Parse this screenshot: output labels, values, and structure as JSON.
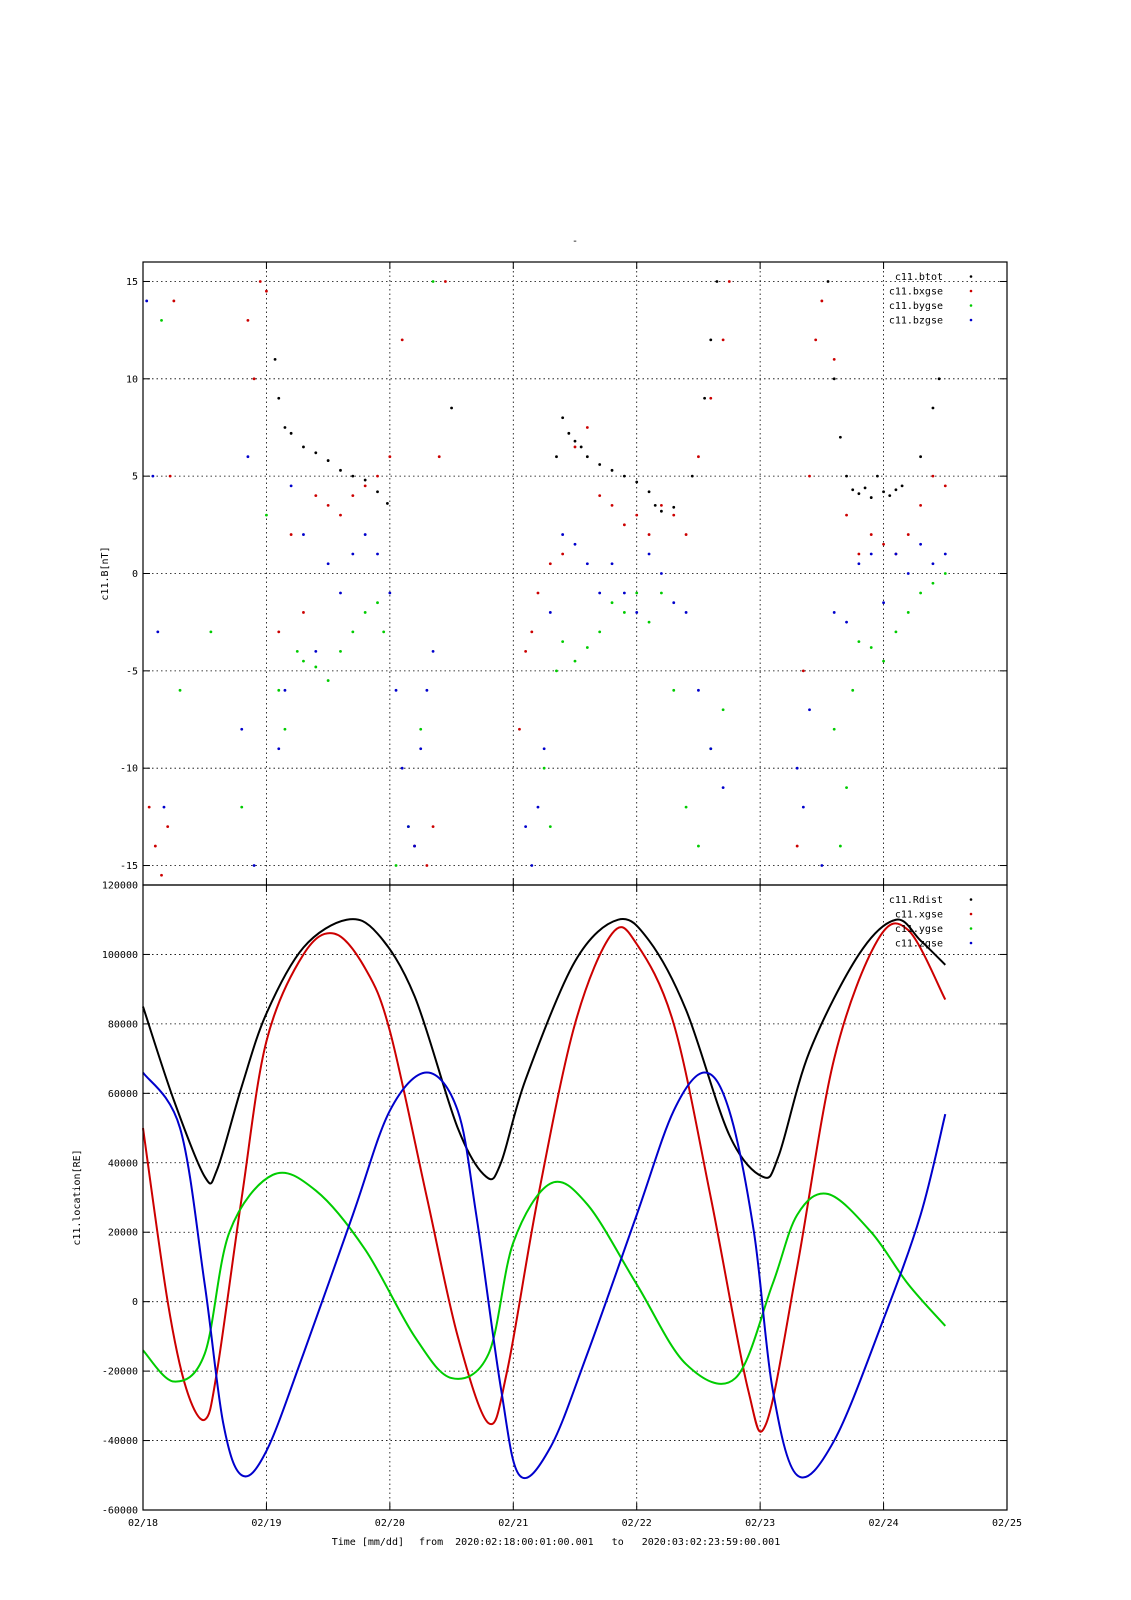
{
  "figure": {
    "top_mark": "-",
    "xlabel_time": "Time [mm/dd]",
    "xlabel_from_word": "from",
    "xlabel_from": "2020:02:18:00:01:00.001",
    "xlabel_to_word": "to",
    "xlabel_to": "2020:03:02:23:59:00.001",
    "x_tick_labels": [
      "02/18",
      "02/19",
      "02/20",
      "02/21",
      "02/22",
      "02/23",
      "02/24",
      "02/25"
    ]
  },
  "chart_data": [
    {
      "type": "scatter",
      "title": "",
      "xlabel": "",
      "ylabel": "c11.B[nT]",
      "x_unit": "days since 02/18 00:00",
      "xlim": [
        0,
        7
      ],
      "ylim": [
        -16,
        16
      ],
      "y_ticks": [
        15,
        10,
        5,
        0,
        -5,
        -10,
        -15
      ],
      "y_tick_labels": [
        "15",
        "10",
        "5",
        "0",
        "-5",
        "-10",
        "-15"
      ],
      "grid": true,
      "legend_placement": "top-right",
      "series": [
        {
          "name": "c11.btot",
          "color": "#000000",
          "x": [
            1.07,
            1.1,
            1.15,
            1.2,
            1.3,
            1.4,
            1.5,
            1.6,
            1.7,
            1.8,
            1.9,
            1.98,
            2.5,
            3.35,
            3.4,
            3.45,
            3.5,
            3.55,
            3.6,
            3.7,
            3.8,
            3.9,
            4.0,
            4.1,
            4.15,
            4.2,
            4.3,
            4.45,
            4.55,
            4.6,
            4.65,
            5.55,
            5.6,
            5.65,
            5.7,
            5.75,
            5.8,
            5.85,
            5.9,
            5.95,
            6.0,
            6.05,
            6.1,
            6.15,
            6.3,
            6.4,
            6.45
          ],
          "y": [
            11.0,
            9.0,
            7.5,
            7.2,
            6.5,
            6.2,
            5.8,
            5.3,
            5.0,
            4.8,
            4.2,
            3.6,
            8.5,
            6.0,
            8.0,
            7.2,
            6.8,
            6.5,
            6.0,
            5.6,
            5.3,
            5.0,
            4.7,
            4.2,
            3.5,
            3.2,
            3.4,
            5.0,
            9.0,
            12.0,
            15.0,
            15.0,
            10.0,
            7.0,
            5.0,
            4.3,
            4.1,
            4.4,
            3.9,
            5.0,
            4.2,
            4.0,
            4.3,
            4.5,
            6.0,
            8.5,
            10.0
          ]
        },
        {
          "name": "c11.bxgse",
          "color": "#cc0000",
          "x": [
            0.05,
            0.1,
            0.15,
            0.2,
            0.22,
            0.25,
            0.85,
            0.9,
            0.95,
            1.0,
            1.1,
            1.2,
            1.3,
            1.4,
            1.5,
            1.6,
            1.7,
            1.8,
            1.9,
            2.0,
            2.1,
            2.2,
            2.3,
            2.35,
            2.4,
            2.45,
            3.05,
            3.1,
            3.15,
            3.2,
            3.3,
            3.4,
            3.5,
            3.6,
            3.7,
            3.8,
            3.9,
            4.0,
            4.1,
            4.2,
            4.3,
            4.4,
            4.5,
            4.6,
            4.7,
            4.75,
            5.3,
            5.35,
            5.4,
            5.45,
            5.5,
            5.6,
            5.7,
            5.8,
            5.9,
            6.0,
            6.1,
            6.2,
            6.3,
            6.4,
            6.5
          ],
          "y": [
            -12.0,
            -14.0,
            -15.5,
            -13.0,
            5.0,
            14.0,
            13.0,
            10.0,
            15.0,
            14.5,
            -3.0,
            2.0,
            -2.0,
            4.0,
            3.5,
            3.0,
            4.0,
            4.5,
            5.0,
            6.0,
            12.0,
            -14.0,
            -15.0,
            -13.0,
            6.0,
            15.0,
            -8.0,
            -4.0,
            -3.0,
            -1.0,
            0.5,
            1.0,
            6.5,
            7.5,
            4.0,
            3.5,
            2.5,
            3.0,
            2.0,
            3.5,
            3.0,
            2.0,
            6.0,
            9.0,
            12.0,
            15.0,
            -14.0,
            -5.0,
            5.0,
            12.0,
            14.0,
            11.0,
            3.0,
            1.0,
            2.0,
            1.5,
            1.0,
            2.0,
            3.5,
            5.0,
            4.5
          ]
        },
        {
          "name": "c11.bygse",
          "color": "#00cc00",
          "x": [
            0.15,
            0.3,
            0.55,
            0.8,
            1.0,
            1.1,
            1.15,
            1.25,
            1.3,
            1.4,
            1.5,
            1.6,
            1.7,
            1.8,
            1.9,
            1.95,
            2.05,
            2.15,
            2.25,
            2.35,
            3.25,
            3.3,
            3.35,
            3.4,
            3.5,
            3.6,
            3.7,
            3.8,
            3.9,
            4.0,
            4.1,
            4.2,
            4.3,
            4.4,
            4.5,
            4.6,
            4.7,
            5.6,
            5.65,
            5.7,
            5.75,
            5.8,
            5.9,
            6.0,
            6.1,
            6.2,
            6.3,
            6.4,
            6.5
          ],
          "y": [
            13.0,
            -6.0,
            -3.0,
            -12.0,
            3.0,
            -6.0,
            -8.0,
            -4.0,
            -4.5,
            -4.8,
            -5.5,
            -4.0,
            -3.0,
            -2.0,
            -1.5,
            -3.0,
            -15.0,
            -13.0,
            -8.0,
            15.0,
            -10.0,
            -13.0,
            -5.0,
            -3.5,
            -4.5,
            -3.8,
            -3.0,
            -1.5,
            -2.0,
            -1.0,
            -2.5,
            -1.0,
            -6.0,
            -12.0,
            -14.0,
            -9.0,
            -7.0,
            -8.0,
            -14.0,
            -11.0,
            -6.0,
            -3.5,
            -3.8,
            -4.5,
            -3.0,
            -2.0,
            -1.0,
            -0.5,
            0.0
          ]
        },
        {
          "name": "c11.bzgse",
          "color": "#0000cc",
          "x": [
            0.03,
            0.08,
            0.12,
            0.17,
            0.8,
            0.85,
            0.9,
            1.1,
            1.15,
            1.2,
            1.3,
            1.4,
            1.5,
            1.6,
            1.7,
            1.8,
            1.9,
            2.0,
            2.05,
            2.1,
            2.15,
            2.2,
            2.25,
            2.3,
            2.35,
            3.1,
            3.15,
            3.2,
            3.25,
            3.3,
            3.4,
            3.5,
            3.6,
            3.7,
            3.8,
            3.9,
            4.0,
            4.1,
            4.2,
            4.3,
            4.4,
            4.5,
            4.6,
            4.7,
            5.3,
            5.35,
            5.4,
            5.5,
            5.6,
            5.7,
            5.8,
            5.9,
            6.0,
            6.1,
            6.2,
            6.3,
            6.4,
            6.5
          ],
          "y": [
            14.0,
            5.0,
            -3.0,
            -12.0,
            -8.0,
            6.0,
            -15.0,
            -9.0,
            -6.0,
            4.5,
            2.0,
            -4.0,
            0.5,
            -1.0,
            1.0,
            2.0,
            1.0,
            -1.0,
            -6.0,
            -10.0,
            -13.0,
            -14.0,
            -9.0,
            -6.0,
            -4.0,
            -13.0,
            -15.0,
            -12.0,
            -9.0,
            -2.0,
            2.0,
            1.5,
            0.5,
            -1.0,
            0.5,
            -1.0,
            -2.0,
            1.0,
            0.0,
            -1.5,
            -2.0,
            -6.0,
            -9.0,
            -11.0,
            -10.0,
            -12.0,
            -7.0,
            -15.0,
            -2.0,
            -2.5,
            0.5,
            1.0,
            -1.5,
            1.0,
            0.0,
            1.5,
            0.5,
            1.0
          ]
        }
      ]
    },
    {
      "type": "line",
      "title": "",
      "xlabel": "Time [mm/dd]",
      "ylabel": "c11.location[RE]",
      "x_unit": "days since 02/18 00:00",
      "xlim": [
        0,
        7
      ],
      "ylim": [
        -60000,
        120000
      ],
      "y_ticks": [
        120000,
        100000,
        80000,
        60000,
        40000,
        20000,
        0,
        -20000,
        -40000,
        -60000
      ],
      "y_tick_labels": [
        "120000",
        "100000",
        "80000",
        "60000",
        "40000",
        "20000",
        "0",
        "-20000",
        "-40000",
        "-60000"
      ],
      "grid": true,
      "legend_placement": "top-right",
      "series": [
        {
          "name": "c11.Rdist",
          "color": "#000000",
          "x": [
            0,
            0.25,
            0.5,
            0.6,
            0.8,
            1.0,
            1.3,
            1.65,
            1.9,
            2.2,
            2.55,
            2.78,
            2.9,
            3.1,
            3.5,
            3.85,
            4.1,
            4.4,
            4.75,
            5.02,
            5.15,
            5.4,
            5.8,
            6.1,
            6.3,
            6.5
          ],
          "y": [
            85000,
            58000,
            36000,
            38000,
            62000,
            83000,
            102000,
            110000,
            106000,
            88000,
            50000,
            36000,
            40000,
            64000,
            98000,
            110000,
            104000,
            84000,
            48000,
            36000,
            42000,
            72000,
            100000,
            110000,
            104000,
            97000
          ]
        },
        {
          "name": "c11.xgse",
          "color": "#cc0000",
          "x": [
            0,
            0.2,
            0.35,
            0.5,
            0.6,
            0.8,
            1.0,
            1.3,
            1.55,
            1.8,
            2.0,
            2.3,
            2.55,
            2.8,
            2.95,
            3.2,
            3.5,
            3.8,
            4.0,
            4.3,
            4.6,
            4.9,
            5.05,
            5.3,
            5.6,
            5.95,
            6.2,
            6.5
          ],
          "y": [
            50000,
            0,
            -25000,
            -34000,
            -20000,
            30000,
            75000,
            100000,
            106000,
            96000,
            78000,
            30000,
            -10000,
            -35000,
            -20000,
            30000,
            80000,
            106000,
            103000,
            80000,
            30000,
            -25000,
            -35000,
            10000,
            70000,
            104000,
            107000,
            87000
          ]
        },
        {
          "name": "c11.ygse",
          "color": "#00cc00",
          "x": [
            0,
            0.25,
            0.5,
            0.7,
            1.05,
            1.4,
            1.8,
            2.2,
            2.5,
            2.8,
            3.0,
            3.3,
            3.6,
            4.0,
            4.4,
            4.8,
            5.1,
            5.3,
            5.55,
            5.9,
            6.2,
            6.5
          ],
          "y": [
            -14000,
            -23000,
            -15000,
            20000,
            36500,
            32000,
            15000,
            -10000,
            -22000,
            -15000,
            17000,
            34000,
            28000,
            5000,
            -18000,
            -22000,
            5000,
            25000,
            31000,
            20000,
            5000,
            -7000
          ]
        },
        {
          "name": "c11.zgse",
          "color": "#0000cc",
          "x": [
            0,
            0.3,
            0.5,
            0.65,
            0.8,
            1.0,
            1.3,
            1.7,
            2.0,
            2.3,
            2.55,
            2.7,
            2.9,
            3.05,
            3.3,
            3.6,
            4.0,
            4.3,
            4.55,
            4.75,
            4.95,
            5.1,
            5.3,
            5.6,
            6.0,
            6.3,
            6.5
          ],
          "y": [
            66000,
            50000,
            5000,
            -35000,
            -50000,
            -43000,
            -15000,
            25000,
            55000,
            66000,
            55000,
            25000,
            -25000,
            -50000,
            -42000,
            -15000,
            25000,
            55000,
            66000,
            55000,
            20000,
            -25000,
            -50000,
            -40000,
            -5000,
            25000,
            54000
          ]
        }
      ]
    }
  ]
}
